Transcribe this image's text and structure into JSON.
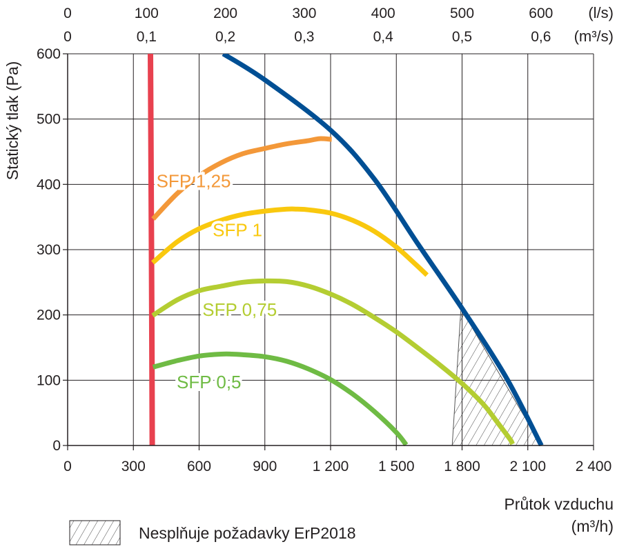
{
  "chart_data": {
    "type": "line",
    "ylabel": "Statický tlak (Pa)",
    "xlabel": "Průtok vzduchu",
    "xlabel_unit": "(m³/h)",
    "xlim": [
      0,
      2400
    ],
    "ylim": [
      0,
      600
    ],
    "grid": true,
    "x_ticks": [
      0,
      300,
      600,
      900,
      1200,
      1500,
      1800,
      2100,
      2400
    ],
    "x_tick_labels": [
      "0",
      "300",
      "600",
      "900",
      "1 200",
      "1 500",
      "1 800",
      "2 100",
      "2 400"
    ],
    "y_ticks": [
      0,
      100,
      200,
      300,
      400,
      500,
      600
    ],
    "y_tick_labels": [
      "0",
      "100",
      "200",
      "300",
      "400",
      "500",
      "600"
    ],
    "top_axis_ls": {
      "unit": "(l/s)",
      "ticks": [
        0,
        100,
        200,
        300,
        400,
        500,
        600
      ],
      "labels": [
        "0",
        "100",
        "200",
        "300",
        "400",
        "500",
        "600"
      ]
    },
    "top_axis_m3s": {
      "unit": "(m³/s)",
      "ticks": [
        0,
        0.1,
        0.2,
        0.3,
        0.4,
        0.5,
        0.6
      ],
      "labels": [
        "0",
        "0,1",
        "0,2",
        "0,3",
        "0,4",
        "0,5",
        "0,6"
      ]
    },
    "series": [
      {
        "color": "#e8414f",
        "points": [
          [
            378,
            600
          ],
          [
            381,
            400
          ],
          [
            384,
            200
          ],
          [
            386,
            0
          ]
        ]
      },
      {
        "color": "#004f94",
        "points": [
          [
            710,
            600
          ],
          [
            900,
            560
          ],
          [
            1200,
            483
          ],
          [
            1400,
            408
          ],
          [
            1600,
            308
          ],
          [
            1800,
            210
          ],
          [
            2000,
            105
          ],
          [
            2162,
            0
          ]
        ]
      },
      {
        "name": "SFP 1,25",
        "color": "#f39839",
        "points": [
          [
            390,
            347
          ],
          [
            500,
            386
          ],
          [
            600,
            413
          ],
          [
            700,
            433
          ],
          [
            800,
            447
          ],
          [
            900,
            455
          ],
          [
            1000,
            462
          ],
          [
            1100,
            467
          ],
          [
            1150,
            470
          ],
          [
            1205,
            469
          ]
        ]
      },
      {
        "name": "SFP 1",
        "color": "#f9c80e",
        "points": [
          [
            388,
            280
          ],
          [
            500,
            312
          ],
          [
            600,
            332
          ],
          [
            700,
            345
          ],
          [
            800,
            354
          ],
          [
            900,
            359
          ],
          [
            1000,
            362
          ],
          [
            1050,
            362
          ],
          [
            1100,
            361
          ],
          [
            1200,
            356
          ],
          [
            1300,
            345
          ],
          [
            1400,
            328
          ],
          [
            1500,
            304
          ],
          [
            1580,
            280
          ],
          [
            1640,
            261
          ]
        ]
      },
      {
        "name": "SFP 0,75",
        "color": "#b4cd32",
        "points": [
          [
            388,
            199
          ],
          [
            500,
            223
          ],
          [
            600,
            237
          ],
          [
            700,
            244
          ],
          [
            800,
            250
          ],
          [
            900,
            252
          ],
          [
            1000,
            251
          ],
          [
            1100,
            244
          ],
          [
            1200,
            232
          ],
          [
            1300,
            216
          ],
          [
            1400,
            196
          ],
          [
            1500,
            174
          ],
          [
            1600,
            149
          ],
          [
            1700,
            123
          ],
          [
            1800,
            95
          ],
          [
            1900,
            62
          ],
          [
            1960,
            36
          ],
          [
            2020,
            9
          ],
          [
            2030,
            2
          ]
        ]
      },
      {
        "name": "SFP 0,5",
        "color": "#6fbb44",
        "points": [
          [
            390,
            120
          ],
          [
            500,
            130
          ],
          [
            600,
            137
          ],
          [
            700,
            140
          ],
          [
            750,
            140
          ],
          [
            800,
            139
          ],
          [
            900,
            136
          ],
          [
            1000,
            129
          ],
          [
            1100,
            117
          ],
          [
            1200,
            101
          ],
          [
            1300,
            79
          ],
          [
            1400,
            52
          ],
          [
            1500,
            20
          ],
          [
            1545,
            1
          ]
        ]
      }
    ],
    "labels": [
      {
        "text": "SFP 1,25",
        "x": 575,
        "y": 405,
        "color": "#f39839"
      },
      {
        "text": "SFP 1",
        "x": 775,
        "y": 330,
        "color": "#f9c80e"
      },
      {
        "text": "SFP 0,75",
        "x": 785,
        "y": 208,
        "color": "#b4cd32"
      },
      {
        "text": "SFP 0,5",
        "x": 645,
        "y": 97,
        "color": "#6fbb44"
      }
    ],
    "hatched_region": [
      [
        1795,
        210
      ],
      [
        1755,
        0
      ],
      [
        2162,
        0
      ]
    ],
    "legend": {
      "text": "Nesplňuje požadavky ErP2018",
      "position": "bottom-left"
    }
  }
}
